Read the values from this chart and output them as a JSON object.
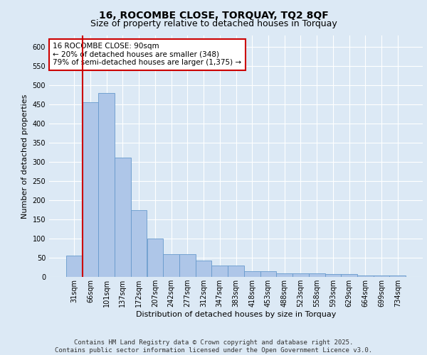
{
  "title_line1": "16, ROCOMBE CLOSE, TORQUAY, TQ2 8QF",
  "title_line2": "Size of property relative to detached houses in Torquay",
  "xlabel": "Distribution of detached houses by size in Torquay",
  "ylabel": "Number of detached properties",
  "categories": [
    "31sqm",
    "66sqm",
    "101sqm",
    "137sqm",
    "172sqm",
    "207sqm",
    "242sqm",
    "277sqm",
    "312sqm",
    "347sqm",
    "383sqm",
    "418sqm",
    "453sqm",
    "488sqm",
    "523sqm",
    "558sqm",
    "593sqm",
    "629sqm",
    "664sqm",
    "699sqm",
    "734sqm"
  ],
  "values": [
    55,
    455,
    480,
    312,
    175,
    100,
    59,
    59,
    43,
    30,
    30,
    14,
    14,
    9,
    9,
    9,
    7,
    7,
    3,
    3,
    4
  ],
  "bar_color": "#aec6e8",
  "bar_edge_color": "#6699cc",
  "highlight_bar_index": 1,
  "highlight_line_color": "#cc0000",
  "annotation_box_text": "16 ROCOMBE CLOSE: 90sqm\n← 20% of detached houses are smaller (348)\n79% of semi-detached houses are larger (1,375) →",
  "annotation_box_color": "#ffffff",
  "annotation_box_edge_color": "#cc0000",
  "ylim": [
    0,
    630
  ],
  "yticks": [
    0,
    50,
    100,
    150,
    200,
    250,
    300,
    350,
    400,
    450,
    500,
    550,
    600
  ],
  "footer_text": "Contains HM Land Registry data © Crown copyright and database right 2025.\nContains public sector information licensed under the Open Government Licence v3.0.",
  "background_color": "#dce9f5",
  "plot_bg_color": "#dce9f5",
  "grid_color": "#ffffff",
  "title_fontsize": 10,
  "subtitle_fontsize": 9,
  "axis_label_fontsize": 8,
  "tick_fontsize": 7,
  "annotation_fontsize": 7.5,
  "footer_fontsize": 6.5
}
